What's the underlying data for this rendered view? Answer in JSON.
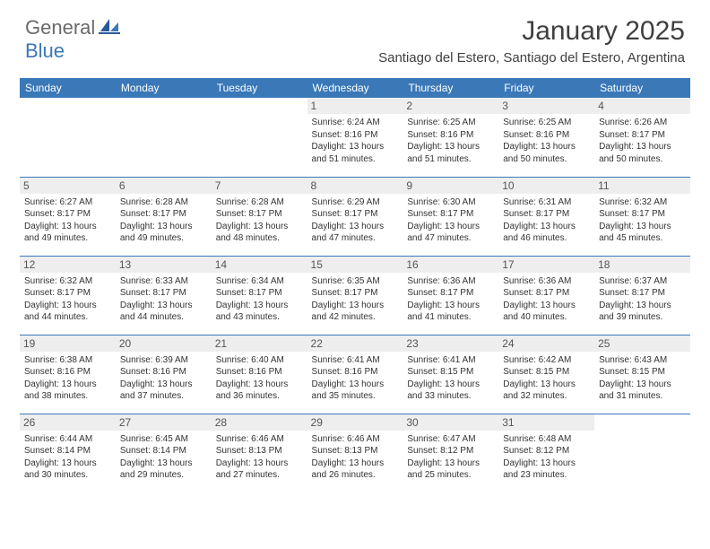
{
  "logo": {
    "general": "General",
    "blue": "Blue"
  },
  "title": "January 2025",
  "location": "Santiago del Estero, Santiago del Estero, Argentina",
  "colors": {
    "header_bg": "#3a78b8",
    "daynum_bg": "#eeeeee",
    "text": "#333333",
    "divider": "#3a78b8"
  },
  "weekdays": [
    "Sunday",
    "Monday",
    "Tuesday",
    "Wednesday",
    "Thursday",
    "Friday",
    "Saturday"
  ],
  "weeks": [
    [
      {
        "day": "",
        "sunrise": "",
        "sunset": "",
        "daylight": ""
      },
      {
        "day": "",
        "sunrise": "",
        "sunset": "",
        "daylight": ""
      },
      {
        "day": "",
        "sunrise": "",
        "sunset": "",
        "daylight": ""
      },
      {
        "day": "1",
        "sunrise": "Sunrise: 6:24 AM",
        "sunset": "Sunset: 8:16 PM",
        "daylight": "Daylight: 13 hours and 51 minutes."
      },
      {
        "day": "2",
        "sunrise": "Sunrise: 6:25 AM",
        "sunset": "Sunset: 8:16 PM",
        "daylight": "Daylight: 13 hours and 51 minutes."
      },
      {
        "day": "3",
        "sunrise": "Sunrise: 6:25 AM",
        "sunset": "Sunset: 8:16 PM",
        "daylight": "Daylight: 13 hours and 50 minutes."
      },
      {
        "day": "4",
        "sunrise": "Sunrise: 6:26 AM",
        "sunset": "Sunset: 8:17 PM",
        "daylight": "Daylight: 13 hours and 50 minutes."
      }
    ],
    [
      {
        "day": "5",
        "sunrise": "Sunrise: 6:27 AM",
        "sunset": "Sunset: 8:17 PM",
        "daylight": "Daylight: 13 hours and 49 minutes."
      },
      {
        "day": "6",
        "sunrise": "Sunrise: 6:28 AM",
        "sunset": "Sunset: 8:17 PM",
        "daylight": "Daylight: 13 hours and 49 minutes."
      },
      {
        "day": "7",
        "sunrise": "Sunrise: 6:28 AM",
        "sunset": "Sunset: 8:17 PM",
        "daylight": "Daylight: 13 hours and 48 minutes."
      },
      {
        "day": "8",
        "sunrise": "Sunrise: 6:29 AM",
        "sunset": "Sunset: 8:17 PM",
        "daylight": "Daylight: 13 hours and 47 minutes."
      },
      {
        "day": "9",
        "sunrise": "Sunrise: 6:30 AM",
        "sunset": "Sunset: 8:17 PM",
        "daylight": "Daylight: 13 hours and 47 minutes."
      },
      {
        "day": "10",
        "sunrise": "Sunrise: 6:31 AM",
        "sunset": "Sunset: 8:17 PM",
        "daylight": "Daylight: 13 hours and 46 minutes."
      },
      {
        "day": "11",
        "sunrise": "Sunrise: 6:32 AM",
        "sunset": "Sunset: 8:17 PM",
        "daylight": "Daylight: 13 hours and 45 minutes."
      }
    ],
    [
      {
        "day": "12",
        "sunrise": "Sunrise: 6:32 AM",
        "sunset": "Sunset: 8:17 PM",
        "daylight": "Daylight: 13 hours and 44 minutes."
      },
      {
        "day": "13",
        "sunrise": "Sunrise: 6:33 AM",
        "sunset": "Sunset: 8:17 PM",
        "daylight": "Daylight: 13 hours and 44 minutes."
      },
      {
        "day": "14",
        "sunrise": "Sunrise: 6:34 AM",
        "sunset": "Sunset: 8:17 PM",
        "daylight": "Daylight: 13 hours and 43 minutes."
      },
      {
        "day": "15",
        "sunrise": "Sunrise: 6:35 AM",
        "sunset": "Sunset: 8:17 PM",
        "daylight": "Daylight: 13 hours and 42 minutes."
      },
      {
        "day": "16",
        "sunrise": "Sunrise: 6:36 AM",
        "sunset": "Sunset: 8:17 PM",
        "daylight": "Daylight: 13 hours and 41 minutes."
      },
      {
        "day": "17",
        "sunrise": "Sunrise: 6:36 AM",
        "sunset": "Sunset: 8:17 PM",
        "daylight": "Daylight: 13 hours and 40 minutes."
      },
      {
        "day": "18",
        "sunrise": "Sunrise: 6:37 AM",
        "sunset": "Sunset: 8:17 PM",
        "daylight": "Daylight: 13 hours and 39 minutes."
      }
    ],
    [
      {
        "day": "19",
        "sunrise": "Sunrise: 6:38 AM",
        "sunset": "Sunset: 8:16 PM",
        "daylight": "Daylight: 13 hours and 38 minutes."
      },
      {
        "day": "20",
        "sunrise": "Sunrise: 6:39 AM",
        "sunset": "Sunset: 8:16 PM",
        "daylight": "Daylight: 13 hours and 37 minutes."
      },
      {
        "day": "21",
        "sunrise": "Sunrise: 6:40 AM",
        "sunset": "Sunset: 8:16 PM",
        "daylight": "Daylight: 13 hours and 36 minutes."
      },
      {
        "day": "22",
        "sunrise": "Sunrise: 6:41 AM",
        "sunset": "Sunset: 8:16 PM",
        "daylight": "Daylight: 13 hours and 35 minutes."
      },
      {
        "day": "23",
        "sunrise": "Sunrise: 6:41 AM",
        "sunset": "Sunset: 8:15 PM",
        "daylight": "Daylight: 13 hours and 33 minutes."
      },
      {
        "day": "24",
        "sunrise": "Sunrise: 6:42 AM",
        "sunset": "Sunset: 8:15 PM",
        "daylight": "Daylight: 13 hours and 32 minutes."
      },
      {
        "day": "25",
        "sunrise": "Sunrise: 6:43 AM",
        "sunset": "Sunset: 8:15 PM",
        "daylight": "Daylight: 13 hours and 31 minutes."
      }
    ],
    [
      {
        "day": "26",
        "sunrise": "Sunrise: 6:44 AM",
        "sunset": "Sunset: 8:14 PM",
        "daylight": "Daylight: 13 hours and 30 minutes."
      },
      {
        "day": "27",
        "sunrise": "Sunrise: 6:45 AM",
        "sunset": "Sunset: 8:14 PM",
        "daylight": "Daylight: 13 hours and 29 minutes."
      },
      {
        "day": "28",
        "sunrise": "Sunrise: 6:46 AM",
        "sunset": "Sunset: 8:13 PM",
        "daylight": "Daylight: 13 hours and 27 minutes."
      },
      {
        "day": "29",
        "sunrise": "Sunrise: 6:46 AM",
        "sunset": "Sunset: 8:13 PM",
        "daylight": "Daylight: 13 hours and 26 minutes."
      },
      {
        "day": "30",
        "sunrise": "Sunrise: 6:47 AM",
        "sunset": "Sunset: 8:12 PM",
        "daylight": "Daylight: 13 hours and 25 minutes."
      },
      {
        "day": "31",
        "sunrise": "Sunrise: 6:48 AM",
        "sunset": "Sunset: 8:12 PM",
        "daylight": "Daylight: 13 hours and 23 minutes."
      },
      {
        "day": "",
        "sunrise": "",
        "sunset": "",
        "daylight": ""
      }
    ]
  ]
}
